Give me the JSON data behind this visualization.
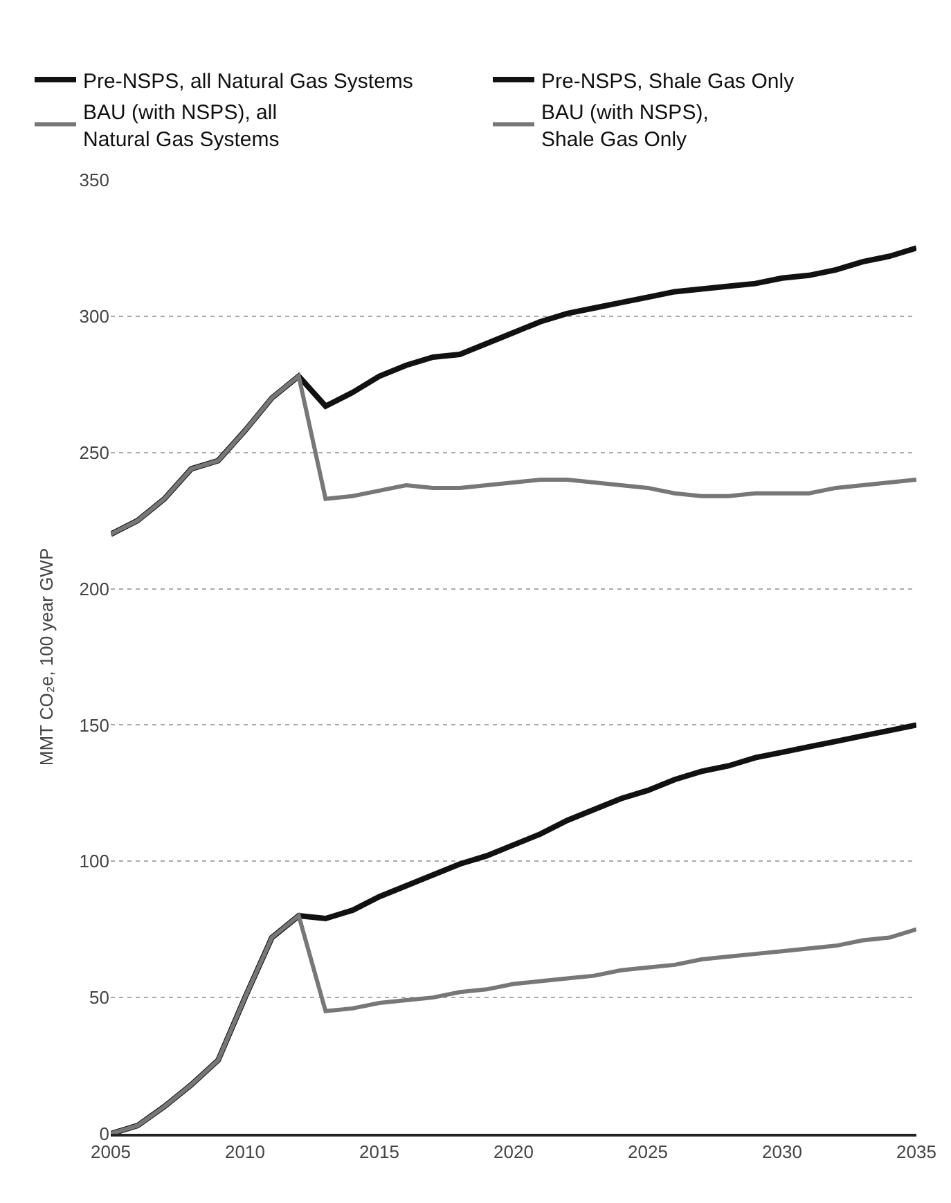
{
  "chart_data": {
    "type": "line",
    "ylabel": "MMT CO₂e, 100 year GWP",
    "x": [
      2005,
      2006,
      2007,
      2008,
      2009,
      2010,
      2011,
      2012,
      2013,
      2014,
      2015,
      2016,
      2017,
      2018,
      2019,
      2020,
      2021,
      2022,
      2023,
      2024,
      2025,
      2026,
      2027,
      2028,
      2029,
      2030,
      2031,
      2032,
      2033,
      2034,
      2035
    ],
    "series": [
      {
        "name": "Pre-NSPS, all Natural Gas Systems",
        "color": "#111111",
        "values": [
          220,
          225,
          233,
          244,
          247,
          258,
          270,
          278,
          267,
          272,
          278,
          282,
          285,
          286,
          290,
          294,
          298,
          301,
          303,
          305,
          307,
          309,
          310,
          311,
          312,
          314,
          315,
          317,
          320,
          322,
          325
        ]
      },
      {
        "name": "Pre-NSPS, Shale Gas Only",
        "color": "#111111",
        "values": [
          0,
          3,
          10,
          18,
          27,
          50,
          72,
          80,
          79,
          82,
          87,
          91,
          95,
          99,
          102,
          106,
          110,
          115,
          119,
          123,
          126,
          130,
          133,
          135,
          138,
          140,
          142,
          144,
          146,
          148,
          150
        ]
      },
      {
        "name": "BAU (with NSPS), all\nNatural Gas Systems",
        "color": "#777777",
        "values": [
          220,
          225,
          233,
          244,
          247,
          258,
          270,
          278,
          233,
          234,
          236,
          238,
          237,
          237,
          238,
          239,
          240,
          240,
          239,
          238,
          237,
          235,
          234,
          234,
          235,
          235,
          235,
          237,
          238,
          239,
          240
        ]
      },
      {
        "name": "BAU (with NSPS),\nShale Gas Only",
        "color": "#777777",
        "values": [
          0,
          3,
          10,
          18,
          27,
          50,
          72,
          80,
          45,
          46,
          48,
          49,
          50,
          52,
          53,
          55,
          56,
          57,
          58,
          60,
          61,
          62,
          64,
          65,
          66,
          67,
          68,
          69,
          71,
          72,
          75
        ]
      }
    ],
    "xlim": [
      2005,
      2035
    ],
    "xticks": [
      2005,
      2010,
      2015,
      2020,
      2025,
      2030,
      2035
    ],
    "ylim": [
      0,
      350
    ],
    "yticks": [
      0,
      50,
      100,
      150,
      200,
      250,
      300,
      350
    ],
    "grid": "y",
    "legend": "top"
  }
}
